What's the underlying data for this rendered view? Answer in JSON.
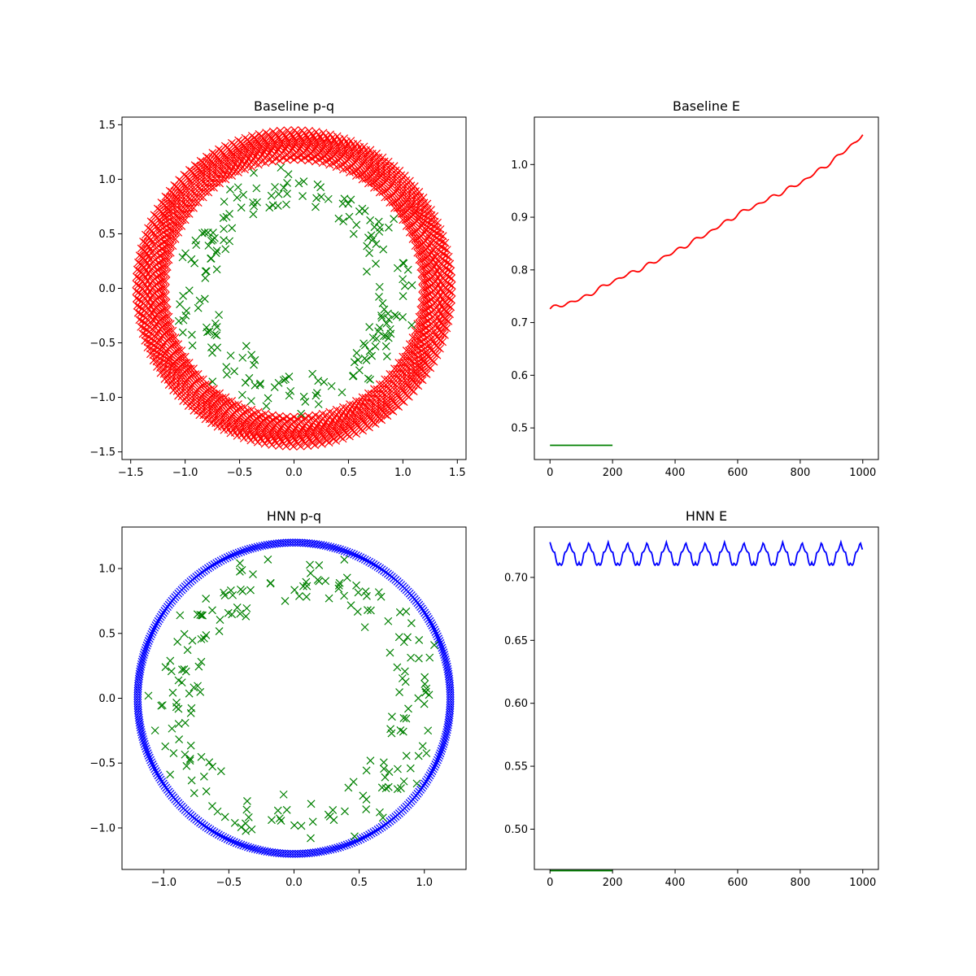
{
  "colors": {
    "red": "#ff0000",
    "green": "#008000",
    "blue": "#0000ff"
  },
  "chart_data": [
    {
      "id": "baseline_pq",
      "type": "scatter",
      "title": "Baseline p-q",
      "xlim": [
        -1.58,
        1.58
      ],
      "ylim": [
        -1.57,
        1.57
      ],
      "xticks": [
        -1.5,
        -1.0,
        -0.5,
        0.0,
        0.5,
        1.0,
        1.5
      ],
      "yticks": [
        -1.5,
        -1.0,
        -0.5,
        0.0,
        0.5,
        1.0,
        1.5
      ],
      "xtick_labels": [
        "−1.5",
        "−1.0",
        "−0.5",
        "0.0",
        "0.5",
        "1.0",
        "1.5"
      ],
      "ytick_labels": [
        "−1.5",
        "−1.0",
        "−0.5",
        "0.0",
        "0.5",
        "1.0",
        "1.5"
      ],
      "series": [
        {
          "color": "red",
          "marker": "x",
          "shape": "annulus",
          "r_inner": 1.18,
          "r_outer": 1.45
        },
        {
          "color": "green",
          "marker": "x",
          "shape": "noisy ring",
          "r_mean": 0.92,
          "r_spread": 0.25
        }
      ]
    },
    {
      "id": "baseline_e",
      "type": "line",
      "title": "Baseline E",
      "xlim": [
        -50,
        1050
      ],
      "ylim": [
        0.44,
        1.09
      ],
      "xticks": [
        0,
        200,
        400,
        600,
        800,
        1000
      ],
      "yticks": [
        0.5,
        0.6,
        0.7,
        0.8,
        0.9,
        1.0
      ],
      "xtick_labels": [
        "0",
        "200",
        "400",
        "600",
        "800",
        "1000"
      ],
      "ytick_labels": [
        "0.5",
        "0.6",
        "0.7",
        "0.8",
        "0.9",
        "1.0"
      ],
      "series": [
        {
          "color": "red",
          "x": [
            0,
            100,
            200,
            300,
            400,
            500,
            600,
            700,
            800,
            900,
            1000
          ],
          "y": [
            0.726,
            0.745,
            0.778,
            0.805,
            0.835,
            0.868,
            0.905,
            0.935,
            0.965,
            1.005,
            1.055
          ]
        },
        {
          "color": "green",
          "x": [
            0,
            200
          ],
          "y": [
            0.467,
            0.467
          ]
        }
      ]
    },
    {
      "id": "hnn_pq",
      "type": "scatter",
      "title": "HNN p-q",
      "xlim": [
        -1.32,
        1.32
      ],
      "ylim": [
        -1.32,
        1.32
      ],
      "xticks": [
        -1.0,
        -0.5,
        0.0,
        0.5,
        1.0
      ],
      "yticks": [
        -1.0,
        -0.5,
        0.0,
        0.5,
        1.0
      ],
      "xtick_labels": [
        "−1.0",
        "−0.5",
        "0.0",
        "0.5",
        "1.0"
      ],
      "ytick_labels": [
        "−1.0",
        "−0.5",
        "0.0",
        "0.5",
        "1.0"
      ],
      "series": [
        {
          "color": "blue",
          "marker": "x",
          "shape": "circle",
          "radius": 1.2
        },
        {
          "color": "green",
          "marker": "x",
          "shape": "noisy ring",
          "r_mean": 0.93,
          "r_spread": 0.25
        }
      ]
    },
    {
      "id": "hnn_e",
      "type": "line",
      "title": "HNN E",
      "xlim": [
        -50,
        1050
      ],
      "ylim": [
        0.468,
        0.74
      ],
      "xticks": [
        0,
        200,
        400,
        600,
        800,
        1000
      ],
      "yticks": [
        0.5,
        0.55,
        0.6,
        0.65,
        0.7
      ],
      "xtick_labels": [
        "0",
        "200",
        "400",
        "600",
        "800",
        "1000"
      ],
      "ytick_labels": [
        "0.50",
        "0.55",
        "0.60",
        "0.65",
        "0.70"
      ],
      "series": [
        {
          "color": "blue",
          "x": [
            0,
            1000
          ],
          "y_mean": 0.72,
          "y_amplitude": 0.008,
          "period": 62
        },
        {
          "color": "green",
          "x": [
            0,
            200
          ],
          "y": [
            0.467,
            0.467
          ]
        }
      ]
    }
  ]
}
